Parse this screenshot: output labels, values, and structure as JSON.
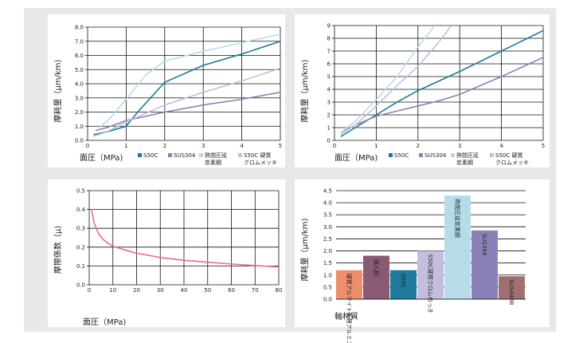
{
  "colors": {
    "S50C": "#1f7a9c",
    "SUS304": "#8a82b6",
    "heat_rolled": "#b6dcea",
    "S50C_hard_chrome": "#c3bedd",
    "friction": "#e66e8c",
    "grid": "#111111"
  },
  "chart_data": [
    {
      "id": "wear-vs-pressure-1",
      "type": "line",
      "xlabel": "面圧（MPa)",
      "ylabel": "摩耗量（μm/km)",
      "xlim": [
        0,
        5
      ],
      "ylim": [
        0,
        8
      ],
      "x_ticks": [
        "0",
        "1",
        "2",
        "3",
        "4",
        "5"
      ],
      "y_ticks": [
        "0.0",
        "1.0",
        "2.0",
        "3.0",
        "4.0",
        "5.0",
        "6.0",
        "7.0",
        "8.0"
      ],
      "grid": true,
      "legend_position": "bottom-right",
      "series": [
        {
          "name": "S50C",
          "color_key": "S50C",
          "x": [
            0.15,
            0.5,
            1.0,
            1.3,
            2.0,
            3.0,
            4.0,
            5.0
          ],
          "y": [
            0.4,
            0.6,
            1.0,
            2.0,
            4.1,
            5.3,
            6.1,
            7.0
          ]
        },
        {
          "name": "SUS304",
          "color_key": "SUS304",
          "x": [
            0.2,
            0.5,
            1.0,
            2.0,
            3.0,
            4.0,
            5.0
          ],
          "y": [
            0.7,
            0.9,
            1.4,
            2.0,
            2.5,
            2.9,
            3.4
          ]
        },
        {
          "name": "熱間圧延 炭素鋼",
          "color_key": "heat_rolled",
          "x": [
            0.3,
            0.6,
            1.0,
            1.5,
            2.0,
            3.0,
            4.0,
            5.0
          ],
          "y": [
            0.9,
            1.6,
            2.9,
            4.6,
            5.6,
            6.3,
            6.9,
            7.5
          ]
        },
        {
          "name": "S50C 硬質 クロムメッキ",
          "color_key": "S50C_hard_chrome",
          "x": [
            0.15,
            0.5,
            1.0,
            2.0,
            3.0,
            4.0,
            5.0
          ],
          "y": [
            0.3,
            0.6,
            1.3,
            2.5,
            3.4,
            4.2,
            5.1
          ]
        }
      ]
    },
    {
      "id": "wear-vs-pressure-2",
      "type": "line",
      "xlabel": "面圧（MPa)",
      "ylabel": "摩耗量（μm/km)",
      "xlim": [
        0,
        5
      ],
      "ylim": [
        0,
        9
      ],
      "x_ticks": [
        "0",
        "1",
        "2",
        "3",
        "4",
        "5"
      ],
      "y_ticks": [
        "0",
        "1",
        "2",
        "3",
        "4",
        "5",
        "6",
        "7",
        "8",
        "9"
      ],
      "grid": true,
      "legend_position": "bottom-right",
      "series": [
        {
          "name": "S50C",
          "color_key": "S50C",
          "x": [
            0.15,
            0.5,
            1.0,
            1.5,
            2.0,
            3.0,
            4.0,
            5.0
          ],
          "y": [
            0.3,
            1.0,
            2.0,
            3.0,
            3.9,
            5.4,
            7.0,
            8.6
          ]
        },
        {
          "name": "SUS304",
          "color_key": "SUS304",
          "x": [
            0.15,
            0.5,
            1.0,
            2.0,
            2.5,
            3.0,
            4.0,
            5.0
          ],
          "y": [
            0.6,
            1.2,
            1.9,
            2.7,
            3.1,
            3.6,
            5.0,
            6.5
          ]
        },
        {
          "name": "熱間圧延 炭素鋼",
          "color_key": "heat_rolled",
          "x": [
            0.15,
            0.5,
            1.0,
            1.5,
            2.0,
            2.4
          ],
          "y": [
            0.6,
            1.5,
            3.2,
            5.0,
            7.3,
            9.0
          ]
        },
        {
          "name": "S50C 硬質 クロムメッキ",
          "color_key": "S50C_hard_chrome",
          "x": [
            0.15,
            0.5,
            1.0,
            1.5,
            2.0,
            2.5,
            2.8
          ],
          "y": [
            0.5,
            1.2,
            2.7,
            4.3,
            5.8,
            7.7,
            9.0
          ]
        }
      ]
    },
    {
      "id": "friction-vs-pressure",
      "type": "line",
      "xlabel": "面圧（MPa)",
      "ylabel": "摩擦係数（μ)",
      "xlim": [
        0,
        80
      ],
      "ylim": [
        0,
        0.5
      ],
      "x_ticks": [
        "0",
        "10",
        "20",
        "30",
        "40",
        "50",
        "60",
        "70",
        "80"
      ],
      "y_ticks": [
        "0.0",
        "0.1",
        "0.2",
        "0.3",
        "0.4",
        "0.5"
      ],
      "grid": true,
      "series": [
        {
          "name": "",
          "color_key": "friction",
          "x": [
            1,
            2,
            4,
            6,
            8,
            10,
            15,
            20,
            30,
            40,
            50,
            60,
            70,
            80
          ],
          "y": [
            0.4,
            0.33,
            0.27,
            0.24,
            0.22,
            0.205,
            0.185,
            0.168,
            0.145,
            0.13,
            0.12,
            0.11,
            0.102,
            0.095
          ]
        }
      ]
    },
    {
      "id": "wear-by-material",
      "type": "bar",
      "xlabel": "軸材質",
      "ylabel": "摩耗量（μm/km)",
      "ylim": [
        0,
        4.5
      ],
      "y_ticks": [
        "0.0",
        "0.5",
        "1.0",
        "1.5",
        "2.0",
        "2.5",
        "3.0",
        "3.5",
        "4.0",
        "4.5"
      ],
      "grid": true,
      "categories": [
        "硬質アルマイト処理アルミニウム",
        "焼入鋼",
        "S50C",
        "S50C硬質クロムめっき",
        "熱間圧延炭素鋼",
        "SUS304",
        "SUS440B"
      ],
      "values": [
        1.2,
        1.8,
        1.2,
        2.0,
        4.3,
        2.85,
        0.95
      ],
      "bar_colors": [
        "#ee8e6c",
        "#8a5a73",
        "#1f7a9c",
        "#c3bedd",
        "#b6dcea",
        "#8a82b6",
        "#a07070"
      ]
    }
  ]
}
